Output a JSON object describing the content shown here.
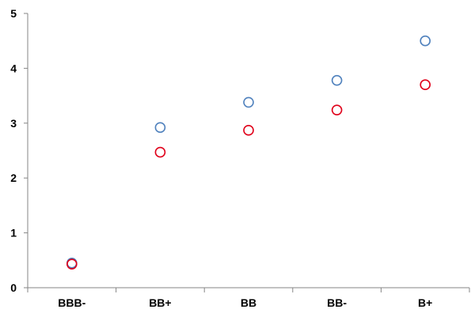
{
  "chart_data": {
    "type": "scatter",
    "title": "",
    "xlabel": "",
    "ylabel": "",
    "categories": [
      "BBB-",
      "BB+",
      "BB",
      "BB-",
      "B+"
    ],
    "ylim": [
      0,
      5
    ],
    "yticks": [
      0,
      1,
      2,
      3,
      4,
      5
    ],
    "grid": {
      "x": false,
      "y": false
    },
    "legend": "none",
    "series": [
      {
        "color": "#4F81BD",
        "values": [
          0.45,
          2.92,
          3.38,
          3.78,
          4.5
        ]
      },
      {
        "color": "#E0001A",
        "values": [
          0.43,
          2.47,
          2.87,
          3.24,
          3.7
        ]
      }
    ]
  }
}
